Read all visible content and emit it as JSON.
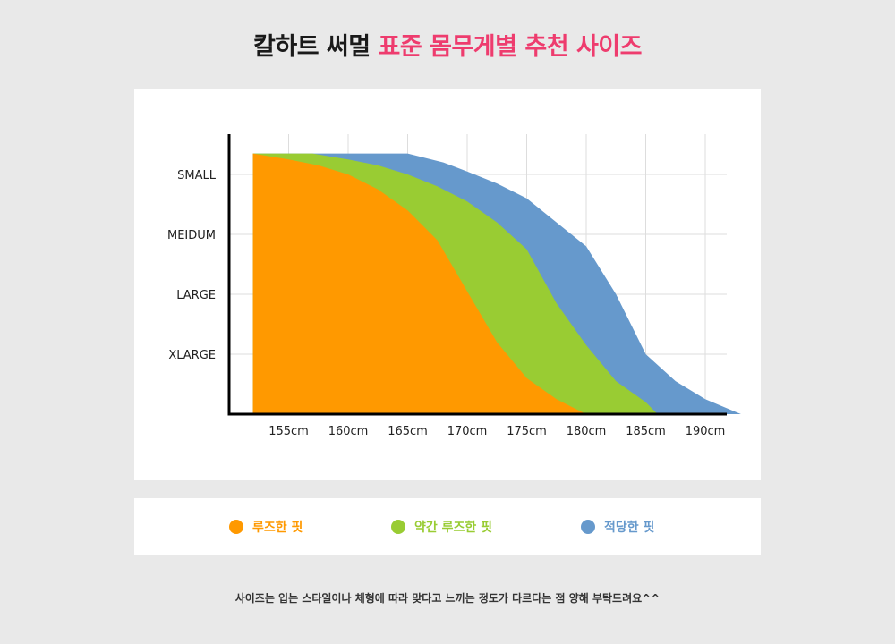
{
  "title": {
    "part1": "칼하트 써멀",
    "part2": "표준 몸무게별 추천 사이즈"
  },
  "colors": {
    "title_accent": "#ee3c6e",
    "loose": "#ff9900",
    "slightly_loose": "#99cc33",
    "fit": "#6699cc",
    "axis": "#000000",
    "grid": "#dddddd"
  },
  "chart_data": {
    "type": "area",
    "title": "",
    "xlabel": "",
    "ylabel": "",
    "x_ticks": [
      "155cm",
      "160cm",
      "165cm",
      "170cm",
      "175cm",
      "180cm",
      "185cm",
      "190cm"
    ],
    "y_ticks": [
      "SMALL",
      "MEIDUM",
      "LARGE",
      "XLARGE"
    ],
    "grid": true,
    "series": [
      {
        "name": "적당한 핏",
        "color_key": "fit",
        "points": [
          [
            152,
            4.35
          ],
          [
            160,
            4.35
          ],
          [
            162,
            4.35
          ],
          [
            165,
            4.35
          ],
          [
            168,
            4.2
          ],
          [
            170,
            4.05
          ],
          [
            172.5,
            3.85
          ],
          [
            175,
            3.6
          ],
          [
            177.5,
            3.2
          ],
          [
            180,
            2.8
          ],
          [
            182.5,
            2.0
          ],
          [
            185,
            1.0
          ],
          [
            187.5,
            0.55
          ],
          [
            190,
            0.25
          ],
          [
            193,
            0.0
          ]
        ]
      },
      {
        "name": "약간 루즈한 핏",
        "color_key": "slightly_loose",
        "points": [
          [
            152,
            4.35
          ],
          [
            157,
            4.35
          ],
          [
            160,
            4.25
          ],
          [
            162.5,
            4.15
          ],
          [
            165,
            4.0
          ],
          [
            167.5,
            3.8
          ],
          [
            170,
            3.55
          ],
          [
            172.5,
            3.2
          ],
          [
            175,
            2.75
          ],
          [
            177.5,
            1.85
          ],
          [
            180,
            1.15
          ],
          [
            182.5,
            0.55
          ],
          [
            185,
            0.2
          ],
          [
            186,
            0.0
          ]
        ]
      },
      {
        "name": "루즈한 핏",
        "color_key": "loose",
        "points": [
          [
            152,
            4.35
          ],
          [
            155,
            4.25
          ],
          [
            157.5,
            4.15
          ],
          [
            160,
            4.0
          ],
          [
            162.5,
            3.75
          ],
          [
            165,
            3.4
          ],
          [
            167.5,
            2.9
          ],
          [
            170,
            2.05
          ],
          [
            172.5,
            1.2
          ],
          [
            175,
            0.6
          ],
          [
            177.5,
            0.25
          ],
          [
            180,
            0.0
          ]
        ]
      }
    ]
  },
  "legend": [
    {
      "label": "루즈한 핏",
      "color_key": "loose"
    },
    {
      "label": "약간 루즈한 핏",
      "color_key": "slightly_loose"
    },
    {
      "label": "적당한 핏",
      "color_key": "fit"
    }
  ],
  "footer": "사이즈는 입는 스타일이나 체형에 따라 맞다고 느끼는 정도가 다르다는 점 양해 부탁드려요^^"
}
